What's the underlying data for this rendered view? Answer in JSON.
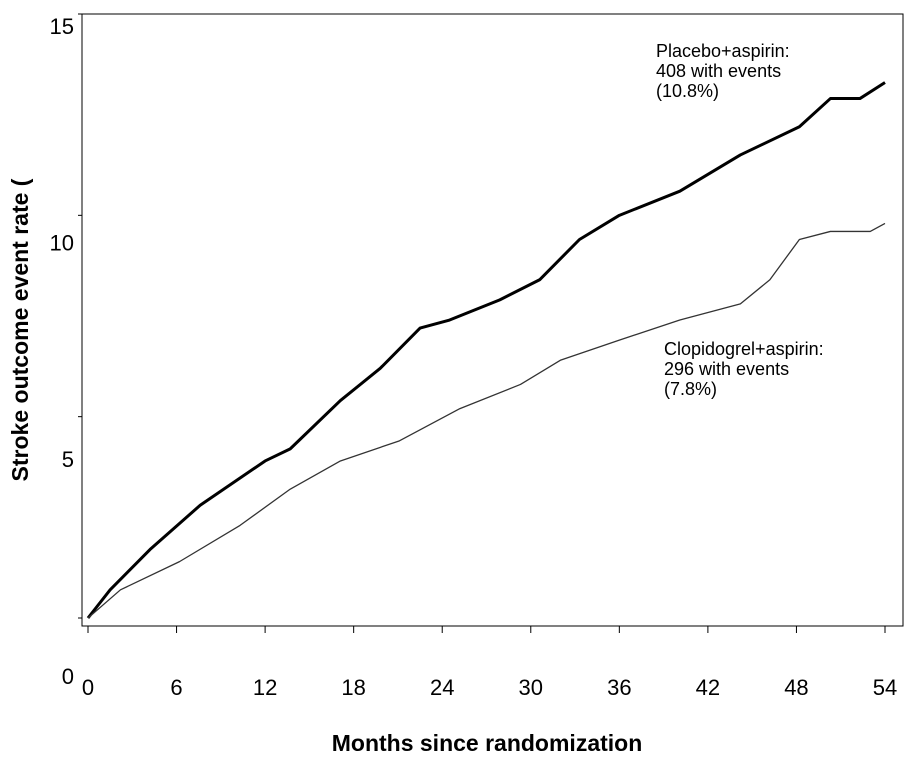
{
  "chart_data": {
    "type": "line",
    "x_label": "Months since randomization",
    "y_label": "Stroke outcome event rate (",
    "xlim": [
      0,
      54
    ],
    "xticks": [
      0,
      6,
      12,
      18,
      24,
      30,
      36,
      42,
      48,
      54
    ],
    "ylim": [
      0,
      15
    ],
    "yticks": [
      0,
      5,
      10,
      15
    ],
    "series": [
      {
        "name": "Placebo+aspirin:",
        "notes": [
          "408 with events",
          "(10.8%)"
        ],
        "color": "#000000",
        "width": 3,
        "x": [
          0,
          1.5,
          4.2,
          7.6,
          12,
          13.7,
          17.1,
          19.8,
          22.5,
          24.5,
          27.9,
          30.6,
          33.3,
          36,
          40.1,
          44.2,
          48.2,
          50.3,
          52.3,
          54
        ],
        "values": [
          0,
          0.7,
          1.7,
          2.8,
          3.9,
          4.2,
          5.4,
          6.2,
          7.2,
          7.4,
          7.9,
          8.4,
          9.4,
          10.0,
          10.6,
          11.5,
          12.2,
          12.9,
          12.9,
          13.3
        ]
      },
      {
        "name": "Clopidogrel+aspirin:",
        "notes": [
          "296 with events",
          "(7.8%)"
        ],
        "color": "#333333",
        "width": 1.3,
        "x": [
          0,
          2.2,
          6.2,
          10.3,
          13.7,
          17.1,
          21.1,
          25.2,
          29.3,
          32,
          36,
          40.1,
          44.2,
          46.2,
          48.2,
          50.3,
          53,
          54
        ],
        "values": [
          0,
          0.7,
          1.4,
          2.3,
          3.2,
          3.9,
          4.4,
          5.2,
          5.8,
          6.4,
          6.9,
          7.4,
          7.8,
          8.4,
          9.4,
          9.6,
          9.6,
          9.8
        ]
      }
    ]
  }
}
